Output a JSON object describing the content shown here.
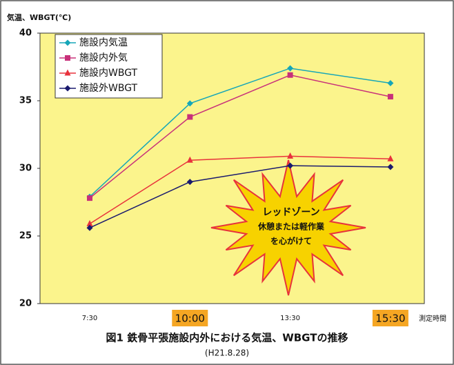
{
  "chart_data": {
    "type": "line",
    "y_axis_label": "気温、WBGT(℃)",
    "x_axis_label": "測定時間",
    "title": "図1 鉄骨平張施設内外における気温、WBGTの推移",
    "subtitle": "(H21.8.28)",
    "categories": [
      "7:30",
      "10:00",
      "13:30",
      "15:30"
    ],
    "highlighted_categories": [
      1,
      3
    ],
    "highlight_color": "#f5a623",
    "ylim": [
      20,
      40
    ],
    "yticks": [
      20,
      25,
      30,
      35,
      40
    ],
    "plot_background": "#fbf48c",
    "legend": "top-left",
    "series": [
      {
        "name": "施設内気温",
        "color": "#16a6b8",
        "marker": "diamond",
        "values": [
          27.9,
          34.8,
          37.4,
          36.3
        ]
      },
      {
        "name": "施設内外気",
        "color": "#c8307a",
        "marker": "square",
        "values": [
          27.8,
          33.8,
          36.9,
          35.3
        ]
      },
      {
        "name": "施設内WBGT",
        "color": "#e8323c",
        "marker": "triangle",
        "values": [
          25.9,
          30.6,
          30.9,
          30.7
        ]
      },
      {
        "name": "施設外WBGT",
        "color": "#1a1a6e",
        "marker": "diamond",
        "values": [
          25.6,
          29.0,
          30.2,
          30.1
        ]
      }
    ],
    "annotation": {
      "lines": [
        "レッドゾーン",
        "休憩または軽作業",
        "を心がけて"
      ],
      "color": "#f7d200",
      "border": "#e8323c"
    }
  }
}
